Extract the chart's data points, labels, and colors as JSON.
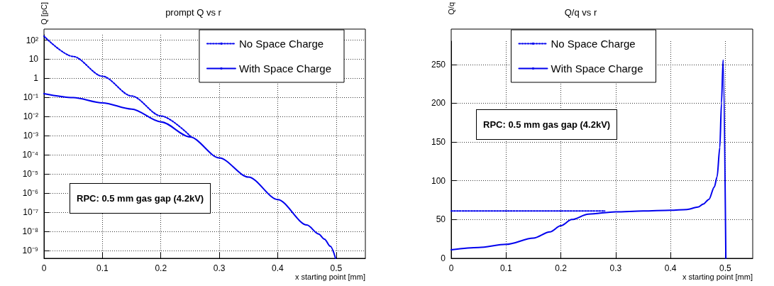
{
  "chart_data": [
    {
      "type": "line",
      "title": "prompt Q vs r",
      "xlabel": "x starting point [mm]",
      "ylabel": "Q [pC]",
      "log": "y",
      "grid": true,
      "legend": "top right",
      "marker": "none",
      "xlim": [
        0,
        0.55
      ],
      "xticks": [
        0,
        0.1,
        0.2,
        0.3,
        0.4,
        0.5
      ],
      "ylim": [
        4e-10,
        190
      ],
      "yticks": [
        {
          "value": 1e-09,
          "label": "10⁻⁹"
        },
        {
          "value": 1e-08,
          "label": "10⁻⁸"
        },
        {
          "value": 1e-07,
          "label": "10⁻⁷"
        },
        {
          "value": 1e-06,
          "label": "10⁻⁶"
        },
        {
          "value": 1e-05,
          "label": "10⁻⁵"
        },
        {
          "value": 0.0001,
          "label": "10⁻⁴"
        },
        {
          "value": 0.001,
          "label": "10⁻³"
        },
        {
          "value": 0.01,
          "label": "10⁻²"
        },
        {
          "value": 0.1,
          "label": "10⁻¹"
        },
        1,
        10,
        {
          "value": 100,
          "label": "10²"
        }
      ],
      "annotations": [
        "RPC: 0.5 mm gas gap (4.2kV)"
      ],
      "series": [
        {
          "name": "No Space Charge",
          "color": "#0000ee",
          "line_style": "dotted",
          "x": [
            0,
            0.05,
            0.1,
            0.15,
            0.2,
            0.25
          ],
          "values": [
            160,
            14,
            1.3,
            0.12,
            0.011,
            0.001
          ]
        },
        {
          "name": "With Space Charge",
          "color": "#0000ee",
          "line_style": "solid",
          "x": [
            0,
            0.05,
            0.1,
            0.15,
            0.2,
            0.25,
            0.3,
            0.35,
            0.4,
            0.45,
            0.47,
            0.48,
            0.49,
            0.499
          ],
          "values": [
            0.16,
            0.1,
            0.053,
            0.025,
            0.0054,
            0.00087,
            7e-05,
            7e-06,
            4.7e-07,
            2.2e-08,
            7.5e-09,
            4e-09,
            1.7e-09,
            4e-10
          ]
        }
      ]
    },
    {
      "type": "line",
      "title": "Q/q vs r",
      "xlabel": "x starting point [mm]",
      "ylabel": "Q/q",
      "grid": true,
      "legend": "top",
      "marker": "none",
      "xlim": [
        0,
        0.55
      ],
      "xticks": [
        0,
        0.1,
        0.2,
        0.3,
        0.4,
        0.5
      ],
      "ylim": [
        0,
        280
      ],
      "yticks": [
        0,
        50,
        100,
        150,
        200,
        250
      ],
      "annotations": [
        "RPC: 0.5 mm gas gap (4.2kV)"
      ],
      "series": [
        {
          "name": "No Space Charge",
          "color": "#0000ee",
          "line_style": "dotted",
          "x": [
            0,
            0.1,
            0.2,
            0.28
          ],
          "values": [
            61,
            61,
            61,
            61
          ]
        },
        {
          "name": "With Space Charge",
          "color": "#0000ee",
          "line_style": "solid",
          "x": [
            0,
            0.05,
            0.1,
            0.15,
            0.18,
            0.2,
            0.22,
            0.25,
            0.3,
            0.35,
            0.4,
            0.43,
            0.45,
            0.46,
            0.47,
            0.48,
            0.485,
            0.49,
            0.493,
            0.496,
            0.501
          ],
          "values": [
            11,
            14,
            18,
            26,
            34,
            42,
            50,
            57,
            60,
            61,
            62,
            63,
            66,
            70,
            76,
            92,
            105,
            143,
            200,
            256,
            0
          ]
        }
      ]
    }
  ]
}
